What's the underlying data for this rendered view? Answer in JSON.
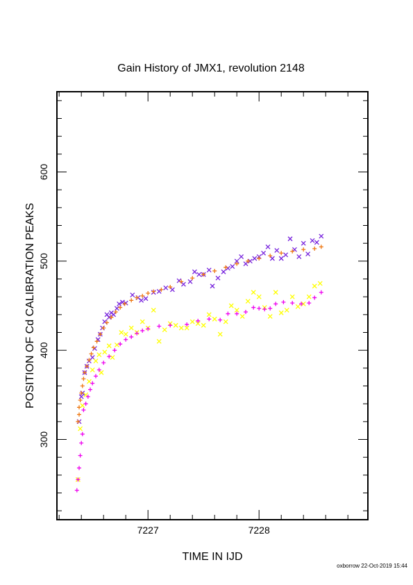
{
  "chart_data": {
    "type": "scatter",
    "title": "Gain History of JMX1, revolution 2148",
    "xlabel": "TIME IN IJD",
    "ylabel": "POSITION OF Cd CALIBRATION PEAKS",
    "xlim": [
      7226.18,
      7228.98
    ],
    "ylim": [
      210,
      690
    ],
    "x_ticks": [
      7227,
      7228
    ],
    "x_tick_labels": [
      "7227",
      "7228"
    ],
    "y_ticks": [
      300,
      400,
      500,
      600
    ],
    "y_tick_labels": [
      "300",
      "400",
      "500",
      "600"
    ],
    "grid": false,
    "footer": "oxborrow 22-Oct-2019 15:44",
    "series": [
      {
        "marker": "x",
        "color": "#7722dd",
        "points": [
          [
            7226.38,
            320
          ],
          [
            7226.4,
            348
          ],
          [
            7226.41,
            352
          ],
          [
            7226.43,
            375
          ],
          [
            7226.45,
            382
          ],
          [
            7226.47,
            388
          ],
          [
            7226.5,
            392
          ],
          [
            7226.52,
            402
          ],
          [
            7226.55,
            412
          ],
          [
            7226.57,
            418
          ],
          [
            7226.59,
            425
          ],
          [
            7226.61,
            432
          ],
          [
            7226.63,
            440
          ],
          [
            7226.65,
            437
          ],
          [
            7226.67,
            442
          ],
          [
            7226.69,
            440
          ],
          [
            7226.72,
            447
          ],
          [
            7226.74,
            452
          ],
          [
            7226.77,
            454
          ],
          [
            7226.8,
            453
          ],
          [
            7226.86,
            462
          ],
          [
            7226.91,
            459
          ],
          [
            7226.94,
            456
          ],
          [
            7226.98,
            458
          ],
          [
            7227.05,
            465
          ],
          [
            7227.1,
            466
          ],
          [
            7227.16,
            470
          ],
          [
            7227.22,
            468
          ],
          [
            7227.28,
            478
          ],
          [
            7227.32,
            474
          ],
          [
            7227.38,
            477
          ],
          [
            7227.42,
            488
          ],
          [
            7227.46,
            485
          ],
          [
            7227.5,
            485
          ],
          [
            7227.55,
            490
          ],
          [
            7227.58,
            472
          ],
          [
            7227.63,
            481
          ],
          [
            7227.68,
            488
          ],
          [
            7227.72,
            492
          ],
          [
            7227.76,
            494
          ],
          [
            7227.8,
            500
          ],
          [
            7227.84,
            505
          ],
          [
            7227.88,
            497
          ],
          [
            7227.92,
            500
          ],
          [
            7227.96,
            503
          ],
          [
            7228.0,
            505
          ],
          [
            7228.04,
            509
          ],
          [
            7228.08,
            516
          ],
          [
            7228.12,
            503
          ],
          [
            7228.16,
            512
          ],
          [
            7228.2,
            503
          ],
          [
            7228.24,
            507
          ],
          [
            7228.28,
            525
          ],
          [
            7228.32,
            513
          ],
          [
            7228.36,
            505
          ],
          [
            7228.4,
            520
          ],
          [
            7228.44,
            508
          ],
          [
            7228.48,
            523
          ],
          [
            7228.52,
            521
          ],
          [
            7228.56,
            528
          ]
        ]
      },
      {
        "marker": "+",
        "color": "#ee7711",
        "points": [
          [
            7226.37,
            320
          ],
          [
            7226.38,
            328
          ],
          [
            7226.38,
            336
          ],
          [
            7226.39,
            344
          ],
          [
            7226.4,
            352
          ],
          [
            7226.41,
            360
          ],
          [
            7226.42,
            368
          ],
          [
            7226.43,
            375
          ],
          [
            7226.45,
            382
          ],
          [
            7226.47,
            389
          ],
          [
            7226.49,
            396
          ],
          [
            7226.51,
            403
          ],
          [
            7226.54,
            410
          ],
          [
            7226.57,
            418
          ],
          [
            7226.6,
            425
          ],
          [
            7226.63,
            431
          ],
          [
            7226.67,
            437
          ],
          [
            7226.71,
            443
          ],
          [
            7226.75,
            448
          ],
          [
            7226.79,
            452
          ],
          [
            7226.85,
            456
          ],
          [
            7226.9,
            459
          ],
          [
            7226.95,
            461
          ],
          [
            7227.0,
            464
          ],
          [
            7227.05,
            466
          ],
          [
            7227.12,
            468
          ],
          [
            7227.2,
            471
          ],
          [
            7227.3,
            477
          ],
          [
            7227.4,
            481
          ],
          [
            7227.5,
            485
          ],
          [
            7227.6,
            489
          ],
          [
            7227.7,
            493
          ],
          [
            7227.8,
            497
          ],
          [
            7227.9,
            500
          ],
          [
            7228.0,
            503
          ],
          [
            7228.1,
            506
          ],
          [
            7228.2,
            509
          ],
          [
            7228.3,
            511
          ],
          [
            7228.4,
            513
          ],
          [
            7228.5,
            514
          ],
          [
            7228.56,
            516
          ]
        ]
      },
      {
        "marker": "x",
        "color": "#ffff00",
        "points": [
          [
            7226.37,
            255
          ],
          [
            7226.39,
            312
          ],
          [
            7226.41,
            338
          ],
          [
            7226.44,
            350
          ],
          [
            7226.47,
            365
          ],
          [
            7226.5,
            378
          ],
          [
            7226.53,
            388
          ],
          [
            7226.56,
            395
          ],
          [
            7226.58,
            375
          ],
          [
            7226.61,
            398
          ],
          [
            7226.65,
            405
          ],
          [
            7226.68,
            392
          ],
          [
            7226.72,
            406
          ],
          [
            7226.76,
            420
          ],
          [
            7226.8,
            418
          ],
          [
            7226.85,
            425
          ],
          [
            7226.9,
            420
          ],
          [
            7226.95,
            432
          ],
          [
            7227.0,
            425
          ],
          [
            7227.05,
            445
          ],
          [
            7227.1,
            410
          ],
          [
            7227.15,
            423
          ],
          [
            7227.2,
            430
          ],
          [
            7227.25,
            428
          ],
          [
            7227.3,
            425
          ],
          [
            7227.35,
            425
          ],
          [
            7227.4,
            432
          ],
          [
            7227.45,
            430
          ],
          [
            7227.5,
            428
          ],
          [
            7227.55,
            440
          ],
          [
            7227.6,
            435
          ],
          [
            7227.65,
            418
          ],
          [
            7227.7,
            432
          ],
          [
            7227.75,
            450
          ],
          [
            7227.8,
            445
          ],
          [
            7227.85,
            438
          ],
          [
            7227.9,
            455
          ],
          [
            7227.95,
            465
          ],
          [
            7228.0,
            460
          ],
          [
            7228.05,
            448
          ],
          [
            7228.1,
            438
          ],
          [
            7228.15,
            465
          ],
          [
            7228.2,
            442
          ],
          [
            7228.25,
            445
          ],
          [
            7228.3,
            460
          ],
          [
            7228.35,
            449
          ],
          [
            7228.4,
            452
          ],
          [
            7228.45,
            460
          ],
          [
            7228.5,
            472
          ],
          [
            7228.55,
            475
          ]
        ]
      },
      {
        "marker": "+",
        "color": "#ee00ee",
        "points": [
          [
            7226.36,
            243
          ],
          [
            7226.37,
            255
          ],
          [
            7226.38,
            268
          ],
          [
            7226.39,
            282
          ],
          [
            7226.4,
            296
          ],
          [
            7226.41,
            306
          ],
          [
            7226.42,
            333
          ],
          [
            7226.44,
            340
          ],
          [
            7226.46,
            348
          ],
          [
            7226.48,
            356
          ],
          [
            7226.5,
            363
          ],
          [
            7226.53,
            371
          ],
          [
            7226.56,
            378
          ],
          [
            7226.6,
            386
          ],
          [
            7226.65,
            393
          ],
          [
            7226.7,
            400
          ],
          [
            7226.75,
            407
          ],
          [
            7226.8,
            412
          ],
          [
            7226.85,
            415
          ],
          [
            7226.9,
            419
          ],
          [
            7226.95,
            422
          ],
          [
            7227.0,
            424
          ],
          [
            7227.1,
            427
          ],
          [
            7227.2,
            428
          ],
          [
            7227.35,
            429
          ],
          [
            7227.45,
            433
          ],
          [
            7227.55,
            435
          ],
          [
            7227.65,
            434
          ],
          [
            7227.72,
            441
          ],
          [
            7227.8,
            441
          ],
          [
            7227.88,
            443
          ],
          [
            7227.95,
            448
          ],
          [
            7228.0,
            447
          ],
          [
            7228.05,
            446
          ],
          [
            7228.1,
            447
          ],
          [
            7228.15,
            452
          ],
          [
            7228.22,
            454
          ],
          [
            7228.3,
            453
          ],
          [
            7228.38,
            452
          ],
          [
            7228.45,
            453
          ],
          [
            7228.5,
            459
          ],
          [
            7228.56,
            465
          ]
        ]
      }
    ]
  }
}
